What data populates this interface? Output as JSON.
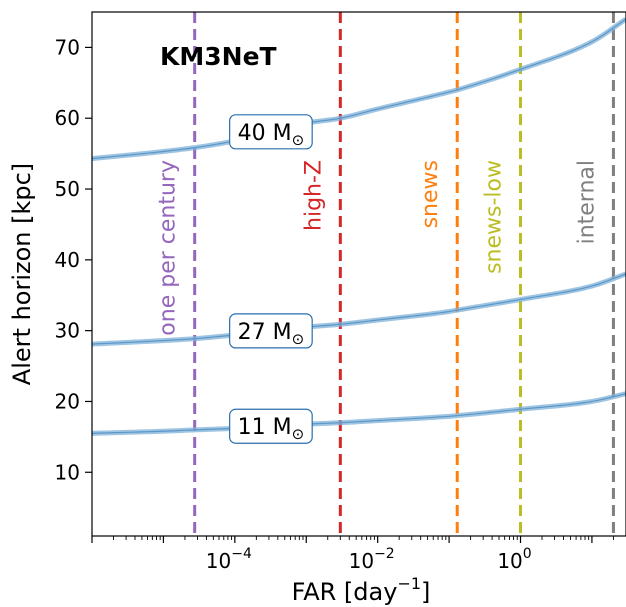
{
  "chart_data": {
    "type": "line",
    "title": "",
    "annotation_title": "KM3NeT",
    "xlabel_main": "FAR [day",
    "xlabel_sup": "−1",
    "xlabel_end": "]",
    "ylabel": "Alert horizon [kpc]",
    "xscale": "log",
    "xlim": [
      1e-06,
      30
    ],
    "ylim": [
      1,
      75
    ],
    "x_ticks": [
      {
        "value": 0.0001,
        "base": "10",
        "exp": "−4"
      },
      {
        "value": 0.01,
        "base": "10",
        "exp": "−2"
      },
      {
        "value": 1,
        "base": "10",
        "exp": "0"
      }
    ],
    "y_ticks": [
      10,
      20,
      30,
      40,
      50,
      60,
      70
    ],
    "grid": false,
    "series": [
      {
        "name": "40 M",
        "name_symbol": "⊙",
        "color": "#7fb1d8",
        "x": [
          1e-06,
          1e-05,
          3e-05,
          0.0001,
          0.001,
          0.003,
          0.01,
          0.1,
          0.13,
          1,
          10,
          30
        ],
        "y": [
          54.3,
          55.3,
          55.9,
          56.8,
          59.3,
          60.0,
          61.3,
          63.7,
          64.0,
          66.9,
          70.8,
          74.0
        ]
      },
      {
        "name": "27 M",
        "name_symbol": "⊙",
        "color": "#7fb1d8",
        "x": [
          1e-06,
          1e-05,
          3e-05,
          0.0001,
          0.001,
          0.003,
          0.01,
          0.1,
          0.13,
          1,
          10,
          30
        ],
        "y": [
          28.1,
          28.6,
          28.9,
          29.4,
          30.5,
          30.9,
          31.5,
          32.7,
          32.9,
          34.4,
          36.3,
          38.0
        ]
      },
      {
        "name": "11 M",
        "name_symbol": "⊙",
        "color": "#7fb1d8",
        "x": [
          1e-06,
          1e-05,
          3e-05,
          0.0001,
          0.001,
          0.003,
          0.01,
          0.1,
          0.13,
          1,
          10,
          30
        ],
        "y": [
          15.5,
          15.8,
          16.0,
          16.2,
          16.8,
          17.0,
          17.3,
          17.9,
          18.0,
          18.9,
          20.0,
          21.1
        ]
      }
    ],
    "vertical_lines": [
      {
        "label": "one per century",
        "x": 2.74e-05,
        "color": "#9467bd"
      },
      {
        "label": "high-Z",
        "x": 0.003,
        "color": "#d62728"
      },
      {
        "label": "snews",
        "x": 0.13,
        "color": "#ff7f0e"
      },
      {
        "label": "snews-low",
        "x": 1,
        "color": "#bcbd22"
      },
      {
        "label": "internal",
        "x": 20,
        "color": "#7f7f7f"
      }
    ]
  }
}
